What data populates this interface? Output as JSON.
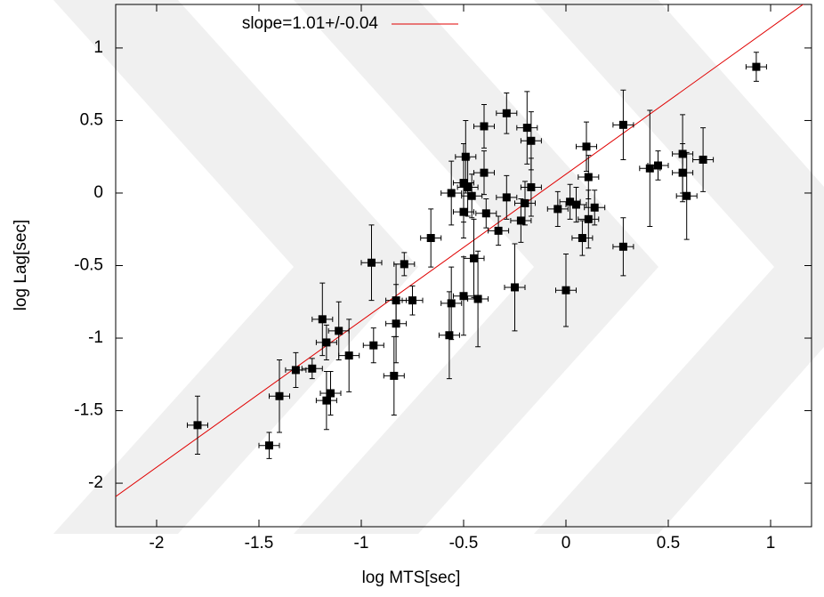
{
  "chart_data": {
    "type": "scatter",
    "x_label": "log MTS[sec]",
    "y_label": "log Lag[sec]",
    "xlim": [
      -2.2,
      1.2
    ],
    "ylim": [
      -2.3,
      1.3
    ],
    "xticks": [
      -2,
      -1.5,
      -1,
      -0.5,
      0,
      0.5,
      1
    ],
    "yticks": [
      -2,
      -1.5,
      -1,
      -0.5,
      0,
      0.5,
      1
    ],
    "grid": false,
    "series": [
      {
        "color": "#000000",
        "x": [
          0.93,
          -1.8,
          -1.45,
          -1.4,
          -1.32,
          -1.24,
          -1.17,
          -1.19,
          -1.17,
          -1.15,
          -1.11,
          -1.06,
          -0.94,
          -0.95,
          -0.83,
          -0.83,
          -0.84,
          -0.79,
          -0.75,
          -0.66,
          -0.56,
          -0.56,
          -0.57,
          -0.49,
          -0.5,
          -0.48,
          -0.5,
          -0.46,
          -0.45,
          -0.5,
          -0.43,
          -0.4,
          -0.4,
          -0.39,
          -0.33,
          -0.29,
          -0.29,
          -0.25,
          -0.22,
          -0.2,
          -0.19,
          -0.17,
          -0.17,
          -0.04,
          0.0,
          0.02,
          0.05,
          0.08,
          0.1,
          0.11,
          0.11,
          0.14,
          0.28,
          0.28,
          0.41,
          0.45,
          0.57,
          0.57,
          0.59,
          0.67
        ],
        "values": [
          0.87,
          -1.6,
          -1.74,
          -1.4,
          -1.22,
          -1.21,
          -1.03,
          -0.87,
          -1.43,
          -1.38,
          -0.95,
          -1.12,
          -1.05,
          -0.48,
          -0.9,
          -0.74,
          -1.26,
          -0.49,
          -0.74,
          -0.31,
          0.0,
          -0.76,
          -0.98,
          0.25,
          0.07,
          0.04,
          -0.13,
          -0.02,
          -0.45,
          -0.71,
          -0.73,
          0.46,
          0.14,
          -0.14,
          -0.26,
          0.55,
          -0.03,
          -0.65,
          -0.19,
          -0.07,
          0.45,
          0.36,
          0.04,
          -0.11,
          -0.67,
          -0.06,
          -0.08,
          -0.31,
          0.32,
          0.11,
          -0.18,
          -0.1,
          0.47,
          -0.37,
          0.17,
          0.19,
          0.27,
          0.14,
          -0.02,
          0.23
        ],
        "xerr": [
          0.05,
          0.05,
          0.05,
          0.05,
          0.05,
          0.05,
          0.05,
          0.05,
          0.05,
          0.05,
          0.05,
          0.05,
          0.05,
          0.05,
          0.05,
          0.05,
          0.05,
          0.05,
          0.05,
          0.05,
          0.05,
          0.05,
          0.05,
          0.05,
          0.05,
          0.05,
          0.05,
          0.05,
          0.05,
          0.05,
          0.05,
          0.05,
          0.05,
          0.05,
          0.05,
          0.05,
          0.05,
          0.05,
          0.05,
          0.05,
          0.05,
          0.05,
          0.05,
          0.05,
          0.05,
          0.05,
          0.05,
          0.05,
          0.05,
          0.05,
          0.05,
          0.05,
          0.05,
          0.05,
          0.05,
          0.05,
          0.05,
          0.05,
          0.05,
          0.05
        ],
        "yerr": [
          0.1,
          0.2,
          0.09,
          0.25,
          0.12,
          0.07,
          0.12,
          0.25,
          0.2,
          0.15,
          0.2,
          0.25,
          0.12,
          0.26,
          0.27,
          0.25,
          0.27,
          0.08,
          0.1,
          0.2,
          0.22,
          0.25,
          0.3,
          0.25,
          0.27,
          0.2,
          0.18,
          0.15,
          0.27,
          0.27,
          0.33,
          0.15,
          0.15,
          0.1,
          0.1,
          0.14,
          0.15,
          0.3,
          0.15,
          0.15,
          0.25,
          0.2,
          0.2,
          0.12,
          0.25,
          0.12,
          0.12,
          0.12,
          0.17,
          0.15,
          0.2,
          0.12,
          0.24,
          0.2,
          0.4,
          0.1,
          0.27,
          0.2,
          0.3,
          0.22
        ]
      }
    ],
    "fit": {
      "name": "slope=1.01+/-0.04",
      "color": "#e00000",
      "slope": 1.01,
      "intercept": 0.13
    }
  }
}
